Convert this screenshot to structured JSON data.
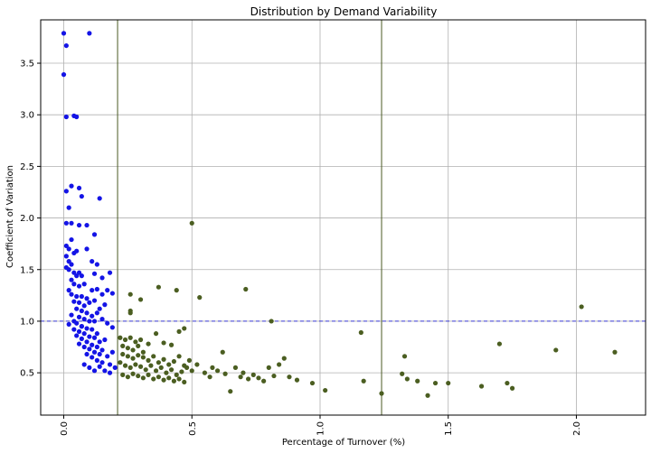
{
  "chart_data": {
    "type": "scatter",
    "title": "Distribution by Demand Variability",
    "xlabel": "Percentage of Turnover (%)",
    "ylabel": "Coefficient of Variation",
    "xlim": [
      -0.09,
      2.27
    ],
    "ylim": [
      0.09,
      3.92
    ],
    "x_ticks": [
      0.0,
      0.5,
      1.0,
      1.5,
      2.0
    ],
    "x_tick_labels": [
      "0.0",
      "0.5",
      "1.0",
      "1.5",
      "2.0"
    ],
    "y_ticks": [
      0.5,
      1.0,
      1.5,
      2.0,
      2.5,
      3.0,
      3.5
    ],
    "y_tick_labels": [
      "0.5",
      "1.0",
      "1.5",
      "2.0",
      "2.5",
      "3.0",
      "3.5"
    ],
    "grid": true,
    "x_tick_rotation_deg": 90,
    "reference_lines": [
      {
        "orientation": "horizontal",
        "value": 1.0,
        "color": "#3a3ad6",
        "style": "dashed"
      },
      {
        "orientation": "vertical",
        "value": 0.21,
        "color": "#4a5a23",
        "style": "solid"
      },
      {
        "orientation": "vertical",
        "value": 1.24,
        "color": "#4a5a23",
        "style": "solid"
      }
    ],
    "series": [
      {
        "color": "#1414e6",
        "points": [
          [
            0.0,
            3.79
          ],
          [
            0.01,
            3.67
          ],
          [
            0.0,
            3.39
          ],
          [
            0.1,
            3.79
          ],
          [
            0.01,
            2.98
          ],
          [
            0.04,
            2.99
          ],
          [
            0.05,
            2.98
          ],
          [
            0.03,
            2.31
          ],
          [
            0.06,
            2.29
          ],
          [
            0.01,
            2.26
          ],
          [
            0.07,
            2.21
          ],
          [
            0.14,
            2.19
          ],
          [
            0.02,
            2.1
          ],
          [
            0.01,
            1.95
          ],
          [
            0.03,
            1.95
          ],
          [
            0.06,
            1.93
          ],
          [
            0.09,
            1.93
          ],
          [
            0.12,
            1.84
          ],
          [
            0.03,
            1.79
          ],
          [
            0.01,
            1.73
          ],
          [
            0.02,
            1.7
          ],
          [
            0.04,
            1.66
          ],
          [
            0.05,
            1.68
          ],
          [
            0.09,
            1.7
          ],
          [
            0.01,
            1.63
          ],
          [
            0.02,
            1.58
          ],
          [
            0.03,
            1.55
          ],
          [
            0.01,
            1.52
          ],
          [
            0.02,
            1.5
          ],
          [
            0.04,
            1.47
          ],
          [
            0.06,
            1.47
          ],
          [
            0.05,
            1.44
          ],
          [
            0.07,
            1.44
          ],
          [
            0.11,
            1.58
          ],
          [
            0.13,
            1.55
          ],
          [
            0.12,
            1.46
          ],
          [
            0.15,
            1.42
          ],
          [
            0.18,
            1.47
          ],
          [
            0.03,
            1.4
          ],
          [
            0.04,
            1.36
          ],
          [
            0.06,
            1.34
          ],
          [
            0.08,
            1.36
          ],
          [
            0.02,
            1.3
          ],
          [
            0.03,
            1.26
          ],
          [
            0.05,
            1.24
          ],
          [
            0.07,
            1.24
          ],
          [
            0.09,
            1.22
          ],
          [
            0.11,
            1.3
          ],
          [
            0.13,
            1.31
          ],
          [
            0.15,
            1.26
          ],
          [
            0.17,
            1.3
          ],
          [
            0.19,
            1.27
          ],
          [
            0.04,
            1.19
          ],
          [
            0.06,
            1.18
          ],
          [
            0.08,
            1.15
          ],
          [
            0.1,
            1.18
          ],
          [
            0.12,
            1.2
          ],
          [
            0.14,
            1.12
          ],
          [
            0.16,
            1.16
          ],
          [
            0.05,
            1.12
          ],
          [
            0.07,
            1.1
          ],
          [
            0.09,
            1.08
          ],
          [
            0.11,
            1.05
          ],
          [
            0.13,
            1.08
          ],
          [
            0.03,
            1.06
          ],
          [
            0.06,
            1.04
          ],
          [
            0.08,
            1.02
          ],
          [
            0.1,
            1.0
          ],
          [
            0.12,
            1.0
          ],
          [
            0.15,
            1.02
          ],
          [
            0.17,
            0.98
          ],
          [
            0.19,
            0.94
          ],
          [
            0.05,
            0.98
          ],
          [
            0.07,
            0.95
          ],
          [
            0.09,
            0.93
          ],
          [
            0.11,
            0.92
          ],
          [
            0.13,
            0.88
          ],
          [
            0.04,
            0.92
          ],
          [
            0.06,
            0.9
          ],
          [
            0.08,
            0.88
          ],
          [
            0.1,
            0.85
          ],
          [
            0.12,
            0.84
          ],
          [
            0.14,
            0.8
          ],
          [
            0.16,
            0.82
          ],
          [
            0.05,
            0.86
          ],
          [
            0.07,
            0.83
          ],
          [
            0.09,
            0.8
          ],
          [
            0.11,
            0.77
          ],
          [
            0.13,
            0.75
          ],
          [
            0.15,
            0.72
          ],
          [
            0.06,
            0.78
          ],
          [
            0.08,
            0.75
          ],
          [
            0.1,
            0.73
          ],
          [
            0.12,
            0.7
          ],
          [
            0.14,
            0.68
          ],
          [
            0.17,
            0.66
          ],
          [
            0.19,
            0.7
          ],
          [
            0.09,
            0.68
          ],
          [
            0.11,
            0.65
          ],
          [
            0.13,
            0.62
          ],
          [
            0.15,
            0.6
          ],
          [
            0.18,
            0.58
          ],
          [
            0.08,
            0.58
          ],
          [
            0.1,
            0.55
          ],
          [
            0.12,
            0.52
          ],
          [
            0.14,
            0.56
          ],
          [
            0.16,
            0.52
          ],
          [
            0.18,
            0.5
          ],
          [
            0.2,
            0.55
          ],
          [
            0.07,
            0.95
          ],
          [
            0.04,
            1.0
          ],
          [
            0.02,
            0.97
          ]
        ]
      },
      {
        "color": "#4b5e21",
        "points": [
          [
            0.5,
            1.95
          ],
          [
            0.26,
            1.26
          ],
          [
            0.3,
            1.21
          ],
          [
            0.37,
            1.33
          ],
          [
            0.44,
            1.3
          ],
          [
            0.53,
            1.23
          ],
          [
            0.71,
            1.31
          ],
          [
            0.26,
            1.1
          ],
          [
            0.26,
            1.08
          ],
          [
            0.81,
            1.0
          ],
          [
            1.16,
            0.89
          ],
          [
            2.02,
            1.14
          ],
          [
            0.22,
            0.84
          ],
          [
            0.24,
            0.82
          ],
          [
            0.26,
            0.84
          ],
          [
            0.28,
            0.8
          ],
          [
            0.3,
            0.82
          ],
          [
            0.33,
            0.78
          ],
          [
            0.36,
            0.88
          ],
          [
            0.39,
            0.79
          ],
          [
            0.42,
            0.77
          ],
          [
            0.45,
            0.9
          ],
          [
            0.47,
            0.93
          ],
          [
            0.23,
            0.76
          ],
          [
            0.25,
            0.74
          ],
          [
            0.27,
            0.72
          ],
          [
            0.29,
            0.76
          ],
          [
            0.31,
            0.7
          ],
          [
            0.23,
            0.68
          ],
          [
            0.25,
            0.66
          ],
          [
            0.27,
            0.64
          ],
          [
            0.29,
            0.67
          ],
          [
            0.31,
            0.65
          ],
          [
            0.33,
            0.62
          ],
          [
            0.35,
            0.66
          ],
          [
            0.37,
            0.6
          ],
          [
            0.39,
            0.63
          ],
          [
            0.41,
            0.58
          ],
          [
            0.43,
            0.61
          ],
          [
            0.45,
            0.66
          ],
          [
            0.47,
            0.57
          ],
          [
            0.49,
            0.62
          ],
          [
            0.22,
            0.6
          ],
          [
            0.24,
            0.57
          ],
          [
            0.26,
            0.55
          ],
          [
            0.28,
            0.58
          ],
          [
            0.3,
            0.56
          ],
          [
            0.32,
            0.53
          ],
          [
            0.34,
            0.57
          ],
          [
            0.36,
            0.52
          ],
          [
            0.38,
            0.55
          ],
          [
            0.4,
            0.5
          ],
          [
            0.42,
            0.53
          ],
          [
            0.44,
            0.48
          ],
          [
            0.46,
            0.51
          ],
          [
            0.48,
            0.55
          ],
          [
            0.5,
            0.52
          ],
          [
            0.23,
            0.48
          ],
          [
            0.25,
            0.46
          ],
          [
            0.27,
            0.49
          ],
          [
            0.29,
            0.47
          ],
          [
            0.31,
            0.45
          ],
          [
            0.33,
            0.48
          ],
          [
            0.35,
            0.44
          ],
          [
            0.37,
            0.46
          ],
          [
            0.39,
            0.43
          ],
          [
            0.41,
            0.45
          ],
          [
            0.43,
            0.42
          ],
          [
            0.45,
            0.44
          ],
          [
            0.47,
            0.41
          ],
          [
            0.52,
            0.58
          ],
          [
            0.55,
            0.5
          ],
          [
            0.57,
            0.46
          ],
          [
            0.58,
            0.55
          ],
          [
            0.6,
            0.52
          ],
          [
            0.62,
            0.7
          ],
          [
            0.63,
            0.49
          ],
          [
            0.65,
            0.32
          ],
          [
            0.67,
            0.55
          ],
          [
            0.69,
            0.46
          ],
          [
            0.7,
            0.5
          ],
          [
            0.72,
            0.44
          ],
          [
            0.74,
            0.48
          ],
          [
            0.76,
            0.45
          ],
          [
            0.78,
            0.42
          ],
          [
            0.8,
            0.55
          ],
          [
            0.82,
            0.47
          ],
          [
            0.84,
            0.58
          ],
          [
            0.86,
            0.64
          ],
          [
            0.88,
            0.46
          ],
          [
            0.91,
            0.43
          ],
          [
            0.97,
            0.4
          ],
          [
            1.02,
            0.33
          ],
          [
            1.17,
            0.42
          ],
          [
            1.24,
            0.3
          ],
          [
            1.32,
            0.49
          ],
          [
            1.34,
            0.44
          ],
          [
            1.38,
            0.42
          ],
          [
            1.42,
            0.28
          ],
          [
            1.45,
            0.4
          ],
          [
            1.33,
            0.66
          ],
          [
            1.5,
            0.4
          ],
          [
            1.63,
            0.37
          ],
          [
            1.7,
            0.78
          ],
          [
            1.73,
            0.4
          ],
          [
            1.75,
            0.35
          ],
          [
            1.92,
            0.72
          ],
          [
            2.15,
            0.7
          ]
        ]
      }
    ]
  }
}
